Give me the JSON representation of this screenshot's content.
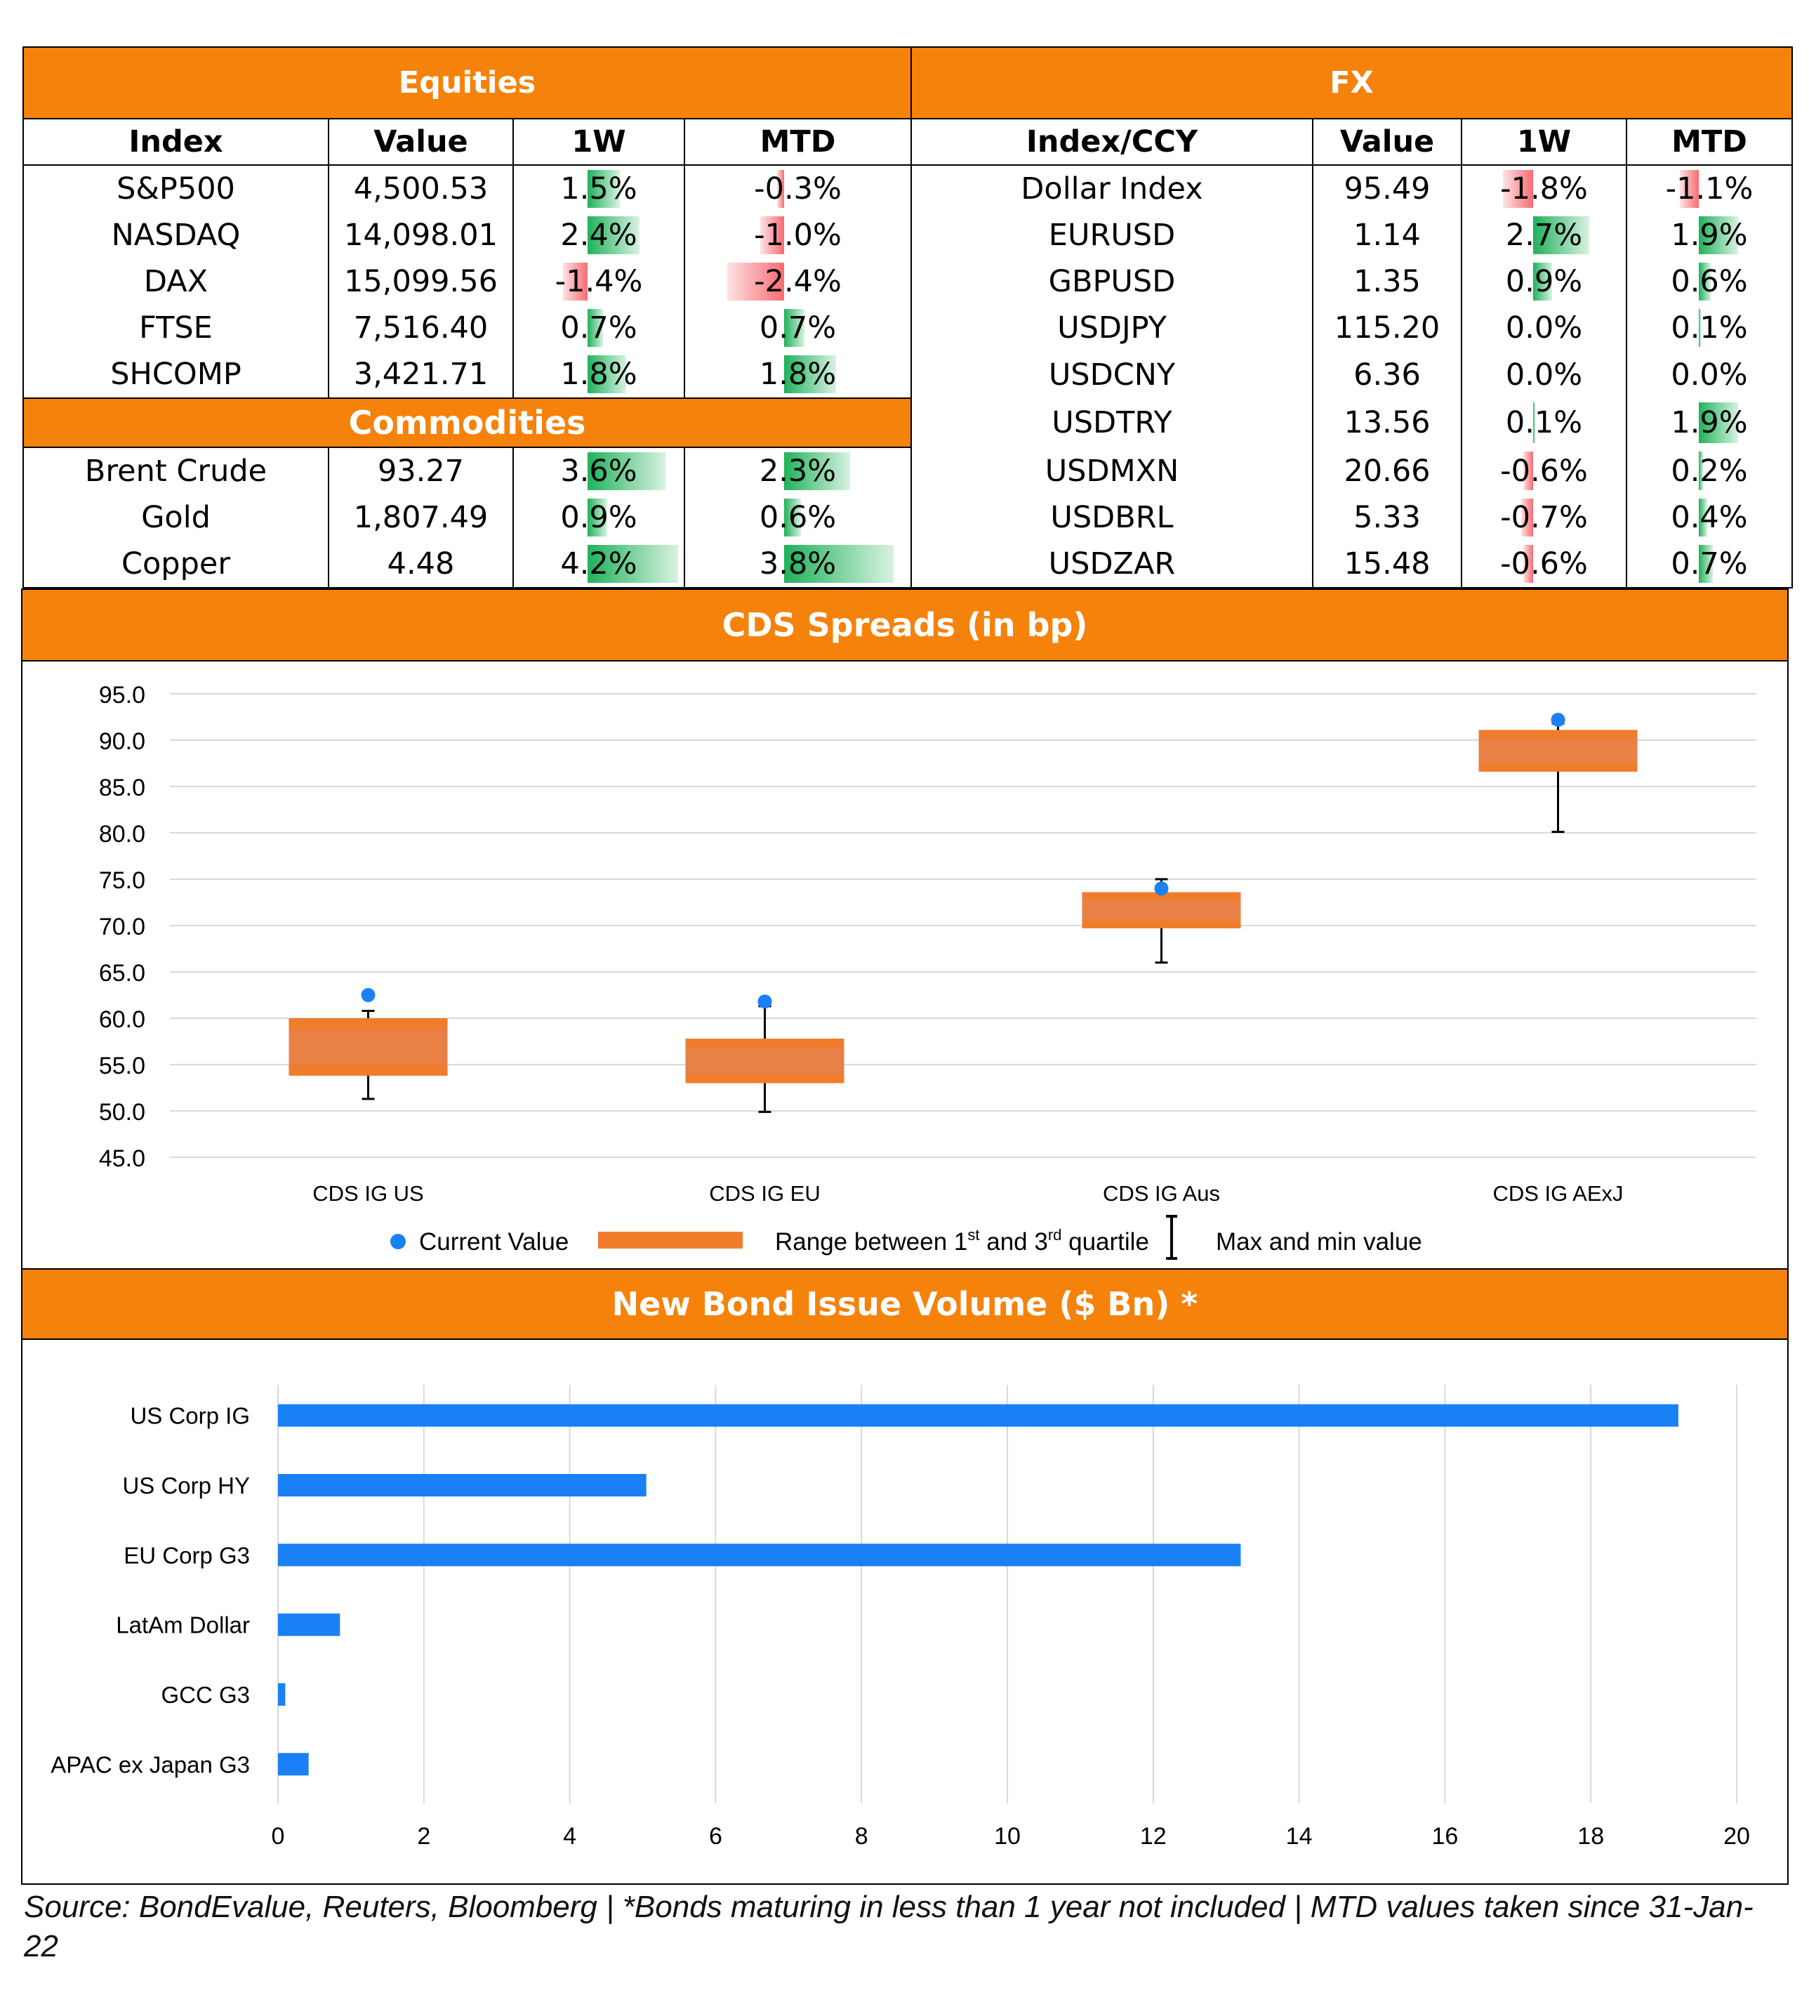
{
  "equities": {
    "title": "Equities",
    "headers": [
      "Index",
      "Value",
      "1W",
      "MTD"
    ],
    "rows": [
      {
        "name": "S&P500",
        "value": "4,500.53",
        "w1": "1.5%",
        "w1_num": 1.5,
        "mtd": "-0.3%",
        "mtd_num": -0.3
      },
      {
        "name": "NASDAQ",
        "value": "14,098.01",
        "w1": "2.4%",
        "w1_num": 2.4,
        "mtd": "-1.0%",
        "mtd_num": -1.0
      },
      {
        "name": "DAX",
        "value": "15,099.56",
        "w1": "-1.4%",
        "w1_num": -1.4,
        "mtd": "-2.4%",
        "mtd_num": -2.4
      },
      {
        "name": "FTSE",
        "value": "7,516.40",
        "w1": "0.7%",
        "w1_num": 0.7,
        "mtd": "0.7%",
        "mtd_num": 0.7
      },
      {
        "name": "SHCOMP",
        "value": "3,421.71",
        "w1": "1.8%",
        "w1_num": 1.8,
        "mtd": "1.8%",
        "mtd_num": 1.8
      }
    ]
  },
  "commodities": {
    "title": "Commodities",
    "rows": [
      {
        "name": "Brent Crude",
        "value": "93.27",
        "w1": "3.6%",
        "w1_num": 3.6,
        "mtd": "2.3%",
        "mtd_num": 2.3
      },
      {
        "name": "Gold",
        "value": "1,807.49",
        "w1": "0.9%",
        "w1_num": 0.9,
        "mtd": "0.6%",
        "mtd_num": 0.6
      },
      {
        "name": "Copper",
        "value": "4.48",
        "w1": "4.2%",
        "w1_num": 4.2,
        "mtd": "3.8%",
        "mtd_num": 3.8
      }
    ]
  },
  "fx": {
    "title": "FX",
    "headers": [
      "Index/CCY",
      "Value",
      "1W",
      "MTD"
    ],
    "rows": [
      {
        "name": "Dollar Index",
        "value": "95.49",
        "w1": "-1.8%",
        "w1_num": -1.8,
        "mtd": "-1.1%",
        "mtd_num": -1.1
      },
      {
        "name": "EURUSD",
        "value": "1.14",
        "w1": "2.7%",
        "w1_num": 2.7,
        "mtd": "1.9%",
        "mtd_num": 1.9
      },
      {
        "name": "GBPUSD",
        "value": "1.35",
        "w1": "0.9%",
        "w1_num": 0.9,
        "mtd": "0.6%",
        "mtd_num": 0.6
      },
      {
        "name": "USDJPY",
        "value": "115.20",
        "w1": "0.0%",
        "w1_num": 0.0,
        "mtd": "0.1%",
        "mtd_num": 0.1
      },
      {
        "name": "USDCNY",
        "value": "6.36",
        "w1": "0.0%",
        "w1_num": 0.0,
        "mtd": "0.0%",
        "mtd_num": 0.0
      },
      {
        "name": "USDTRY",
        "value": "13.56",
        "w1": "0.1%",
        "w1_num": 0.1,
        "mtd": "1.9%",
        "mtd_num": 1.9
      },
      {
        "name": "USDMXN",
        "value": "20.66",
        "w1": "-0.6%",
        "w1_num": -0.6,
        "mtd": "0.2%",
        "mtd_num": 0.2
      },
      {
        "name": "USDBRL",
        "value": "5.33",
        "w1": "-0.7%",
        "w1_num": -0.7,
        "mtd": "0.4%",
        "mtd_num": 0.4
      },
      {
        "name": "USDZAR",
        "value": "15.48",
        "w1": "-0.6%",
        "w1_num": -0.6,
        "mtd": "0.7%",
        "mtd_num": 0.7
      }
    ]
  },
  "cds_title": "CDS Spreads (in bp)",
  "bond_title": "New Bond Issue Volume ($ Bn) *",
  "source_note": "Source: BondEvalue, Reuters, Bloomberg | *Bonds maturing in less than 1 year not included | MTD values taken since 31-Jan-22",
  "colors": {
    "orange": "#f5820b",
    "box": "#f07c2c",
    "box_inner": "#e98046",
    "dot": "#1a80f5",
    "bar": "#1a80f5",
    "pos": "#1fb25a",
    "neg": "#f76b72"
  },
  "chart_data": [
    {
      "type": "box",
      "title": "CDS Spreads (in bp)",
      "ylim": [
        45,
        95
      ],
      "yticks": [
        "95.0",
        "90.0",
        "85.0",
        "80.0",
        "75.0",
        "70.0",
        "65.0",
        "60.0",
        "55.0",
        "50.0",
        "45.0"
      ],
      "categories": [
        "CDS IG US",
        "CDS IG EU",
        "CDS IG Aus",
        "CDS IG AExJ"
      ],
      "series": [
        {
          "name": "Current Value",
          "values": [
            62.5,
            61.8,
            74.0,
            92.2
          ]
        },
        {
          "name": "q1",
          "values": [
            53.8,
            53.0,
            69.7,
            86.6
          ]
        },
        {
          "name": "q3",
          "values": [
            60.0,
            57.8,
            73.6,
            91.1
          ]
        },
        {
          "name": "min",
          "values": [
            51.3,
            49.9,
            66.0,
            80.1
          ]
        },
        {
          "name": "max",
          "values": [
            60.8,
            61.3,
            75.0,
            91.8
          ]
        }
      ],
      "legend": {
        "current": "Current Value",
        "range_pre": "Range between 1",
        "range_sup1": "st",
        "range_mid": " and 3",
        "range_sup2": "rd",
        "range_post": " quartile",
        "maxmin": "Max and min value"
      },
      "legend_position": "bottom",
      "grid": true
    },
    {
      "type": "bar",
      "orientation": "horizontal",
      "title": "New Bond Issue Volume ($ Bn) *",
      "categories": [
        "US Corp IG",
        "US Corp HY",
        "EU Corp G3",
        "LatAm Dollar",
        "GCC G3",
        "APAC ex Japan G3"
      ],
      "values": [
        19.2,
        5.05,
        13.2,
        0.85,
        0.1,
        0.42
      ],
      "xlim": [
        0,
        20
      ],
      "xticks": [
        "0",
        "2",
        "4",
        "6",
        "8",
        "10",
        "12",
        "14",
        "16",
        "18",
        "20"
      ],
      "grid": true
    }
  ]
}
